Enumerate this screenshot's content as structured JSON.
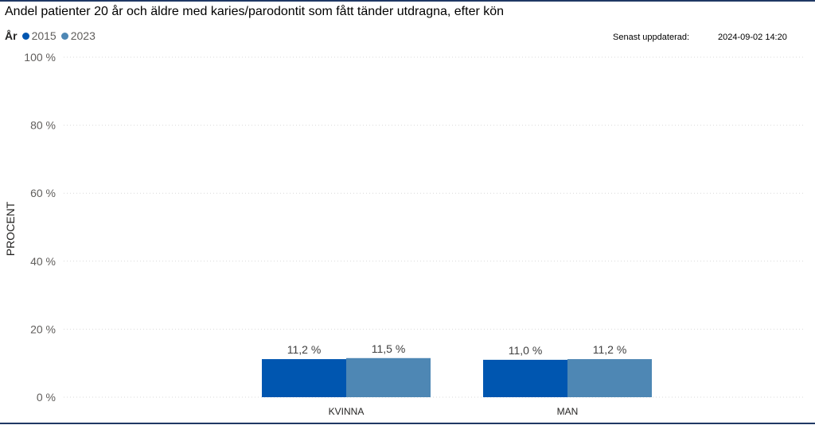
{
  "chart_data": {
    "type": "bar",
    "title": "Andel patienter 20 år och äldre med karies/parodontit som fått tänder utdragna, efter kön",
    "ylabel": "PROCENT",
    "ylim": [
      0,
      100
    ],
    "yticks": [
      0,
      20,
      40,
      60,
      80,
      100
    ],
    "ytick_labels": [
      "0 %",
      "20 %",
      "40 %",
      "60 %",
      "80 %",
      "100 %"
    ],
    "categories": [
      "KVINNA",
      "MAN"
    ],
    "legend_title": "År",
    "legend_position": "top-left",
    "grid": true,
    "series": [
      {
        "name": "2015",
        "color": "#0056b0",
        "values": [
          11.2,
          11.0
        ],
        "labels": [
          "11,2 %",
          "11,0 %"
        ]
      },
      {
        "name": "2023",
        "color": "#4e87b4",
        "values": [
          11.5,
          11.2
        ],
        "labels": [
          "11,5 %",
          "11,2 %"
        ]
      }
    ]
  },
  "updated": {
    "label": "Senast uppdaterad:",
    "value": "2024-09-02 14:20"
  }
}
